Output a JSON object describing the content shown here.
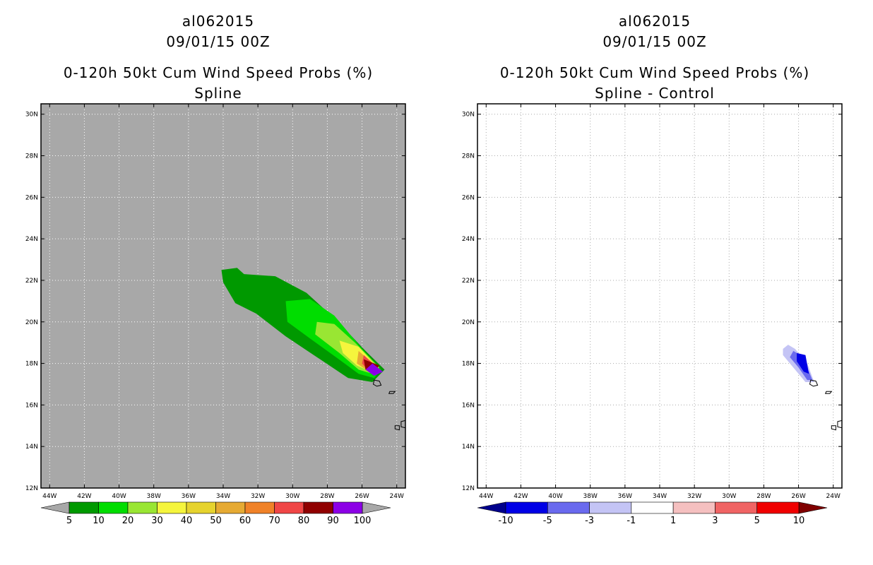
{
  "chart_data": [
    {
      "type": "filled-contour-map",
      "title": [
        "al062015",
        "09/01/15 00Z",
        "0-120h 50kt Cum Wind Speed Probs (%)",
        "Spline"
      ],
      "background_color": "#a8a8a8",
      "grid_color": "#ffffff",
      "xlim": [
        -44.5,
        -23.5
      ],
      "ylim": [
        12,
        30.5
      ],
      "x_ticks": [
        -44,
        -42,
        -40,
        -38,
        -36,
        -34,
        -32,
        -30,
        -28,
        -26,
        -24
      ],
      "x_tick_labels": [
        "44W",
        "42W",
        "40W",
        "38W",
        "36W",
        "34W",
        "32W",
        "30W",
        "28W",
        "26W",
        "24W"
      ],
      "y_ticks": [
        12,
        14,
        16,
        18,
        20,
        22,
        24,
        26,
        28,
        30
      ],
      "y_tick_labels": [
        "12N",
        "14N",
        "16N",
        "18N",
        "20N",
        "22N",
        "24N",
        "26N",
        "28N",
        "30N"
      ],
      "colorbar": {
        "labels": [
          "5",
          "10",
          "20",
          "30",
          "40",
          "50",
          "60",
          "70",
          "80",
          "90",
          "100"
        ],
        "colors": [
          "#009900",
          "#00dd00",
          "#99e633",
          "#f5f53d",
          "#e6d32e",
          "#e6aa33",
          "#f08228",
          "#f04646",
          "#900000",
          "#8c00e6"
        ],
        "under_color": "#a8a8a8",
        "over_color": "#a8a8a8"
      },
      "contours": [
        {
          "level": 5,
          "color": "#009900",
          "points": [
            [
              -34.1,
              22.5
            ],
            [
              -33.2,
              22.6
            ],
            [
              -32.8,
              22.3
            ],
            [
              -31.0,
              22.2
            ],
            [
              -29.2,
              21.4
            ],
            [
              -27.5,
              20.1
            ],
            [
              -25.8,
              18.6
            ],
            [
              -24.7,
              17.7
            ],
            [
              -25.4,
              17.1
            ],
            [
              -26.8,
              17.3
            ],
            [
              -28.6,
              18.3
            ],
            [
              -30.4,
              19.3
            ],
            [
              -32.1,
              20.4
            ],
            [
              -33.3,
              20.9
            ],
            [
              -34.0,
              21.9
            ]
          ]
        },
        {
          "level": 10,
          "color": "#00dd00",
          "points": [
            [
              -30.4,
              21.0
            ],
            [
              -29.0,
              21.1
            ],
            [
              -27.6,
              20.3
            ],
            [
              -26.1,
              18.8
            ],
            [
              -24.9,
              17.7
            ],
            [
              -25.3,
              17.3
            ],
            [
              -26.2,
              17.5
            ],
            [
              -27.5,
              18.3
            ],
            [
              -29.0,
              19.2
            ],
            [
              -30.3,
              20.0
            ]
          ]
        },
        {
          "level": 20,
          "color": "#99e633",
          "points": [
            [
              -28.6,
              20.0
            ],
            [
              -27.6,
              19.9
            ],
            [
              -26.4,
              19.0
            ],
            [
              -25.0,
              17.8
            ],
            [
              -25.4,
              17.5
            ],
            [
              -26.2,
              17.7
            ],
            [
              -27.3,
              18.5
            ],
            [
              -28.7,
              19.4
            ]
          ]
        },
        {
          "level": 30,
          "color": "#f5f53d",
          "points": [
            [
              -27.3,
              19.1
            ],
            [
              -26.2,
              18.8
            ],
            [
              -25.1,
              17.8
            ],
            [
              -25.5,
              17.6
            ],
            [
              -26.3,
              17.9
            ],
            [
              -27.1,
              18.5
            ]
          ]
        },
        {
          "level": 50,
          "color": "#e6aa33",
          "points": [
            [
              -26.2,
              18.6
            ],
            [
              -25.1,
              17.8
            ],
            [
              -25.6,
              17.6
            ],
            [
              -26.3,
              18.0
            ]
          ]
        },
        {
          "level": 70,
          "color": "#f04646",
          "points": [
            [
              -25.9,
              18.4
            ],
            [
              -25.1,
              17.8
            ],
            [
              -25.6,
              17.6
            ],
            [
              -26.0,
              18.0
            ]
          ]
        },
        {
          "level": 90,
          "color": "#900000",
          "points": [
            [
              -25.9,
              18.2
            ],
            [
              -25.0,
              17.9
            ],
            [
              -25.4,
              17.5
            ],
            [
              -25.8,
              17.7
            ]
          ]
        },
        {
          "level": 100,
          "color": "#8c00e6",
          "points": [
            [
              -25.4,
              18.0
            ],
            [
              -24.8,
              17.6
            ],
            [
              -25.3,
              17.4
            ],
            [
              -25.8,
              17.7
            ]
          ]
        }
      ]
    },
    {
      "type": "filled-contour-map",
      "title": [
        "al062015",
        "09/01/15 00Z",
        "0-120h 50kt Cum Wind Speed Probs (%)",
        "Spline - Control"
      ],
      "background_color": "#ffffff",
      "grid_color": "#aaaaaa",
      "xlim": [
        -44.5,
        -23.5
      ],
      "ylim": [
        12,
        30.5
      ],
      "x_ticks": [
        -44,
        -42,
        -40,
        -38,
        -36,
        -34,
        -32,
        -30,
        -28,
        -26,
        -24
      ],
      "x_tick_labels": [
        "44W",
        "42W",
        "40W",
        "38W",
        "36W",
        "34W",
        "32W",
        "30W",
        "28W",
        "26W",
        "24W"
      ],
      "y_ticks": [
        12,
        14,
        16,
        18,
        20,
        22,
        24,
        26,
        28,
        30
      ],
      "y_tick_labels": [
        "12N",
        "14N",
        "16N",
        "18N",
        "20N",
        "22N",
        "24N",
        "26N",
        "28N",
        "30N"
      ],
      "colorbar": {
        "labels": [
          "-10",
          "-5",
          "-3",
          "-1",
          "1",
          "3",
          "5",
          "10"
        ],
        "colors": [
          "#0000e6",
          "#6a6aee",
          "#c4c4f5",
          "#ffffff",
          "#f5c0c0",
          "#f06464",
          "#f00000"
        ],
        "under_color": "#00008c",
        "over_color": "#800000"
      },
      "contours": [
        {
          "level": -1,
          "color": "#c4c4f5",
          "points": [
            [
              -26.6,
              18.9
            ],
            [
              -26.2,
              18.7
            ],
            [
              -25.5,
              18.0
            ],
            [
              -25.1,
              17.1
            ],
            [
              -25.6,
              17.1
            ],
            [
              -26.3,
              17.8
            ],
            [
              -26.9,
              18.4
            ],
            [
              -26.9,
              18.7
            ]
          ]
        },
        {
          "level": -3,
          "color": "#6a6aee",
          "points": [
            [
              -26.3,
              18.6
            ],
            [
              -25.9,
              18.4
            ],
            [
              -25.4,
              17.6
            ],
            [
              -25.2,
              17.2
            ],
            [
              -25.5,
              17.2
            ],
            [
              -26.0,
              17.8
            ],
            [
              -26.5,
              18.3
            ]
          ]
        },
        {
          "level": -5,
          "color": "#0000e6",
          "points": [
            [
              -26.1,
              18.5
            ],
            [
              -25.6,
              18.4
            ],
            [
              -25.4,
              17.5
            ],
            [
              -25.7,
              17.6
            ],
            [
              -26.1,
              18.1
            ]
          ]
        }
      ]
    }
  ],
  "islands": [
    [
      [
        -25.3,
        17.2
      ],
      [
        -25.0,
        17.15
      ],
      [
        -24.9,
        16.95
      ],
      [
        -25.15,
        16.9
      ],
      [
        -25.35,
        17.0
      ]
    ],
    [
      [
        -24.4,
        16.65
      ],
      [
        -24.1,
        16.65
      ],
      [
        -24.2,
        16.55
      ],
      [
        -24.45,
        16.55
      ]
    ],
    [
      [
        -24.1,
        15.0
      ],
      [
        -23.85,
        15.0
      ],
      [
        -23.85,
        14.8
      ],
      [
        -24.1,
        14.85
      ]
    ],
    [
      [
        -23.75,
        15.2
      ],
      [
        -23.5,
        15.25
      ],
      [
        -23.5,
        14.9
      ],
      [
        -23.75,
        14.95
      ]
    ]
  ]
}
